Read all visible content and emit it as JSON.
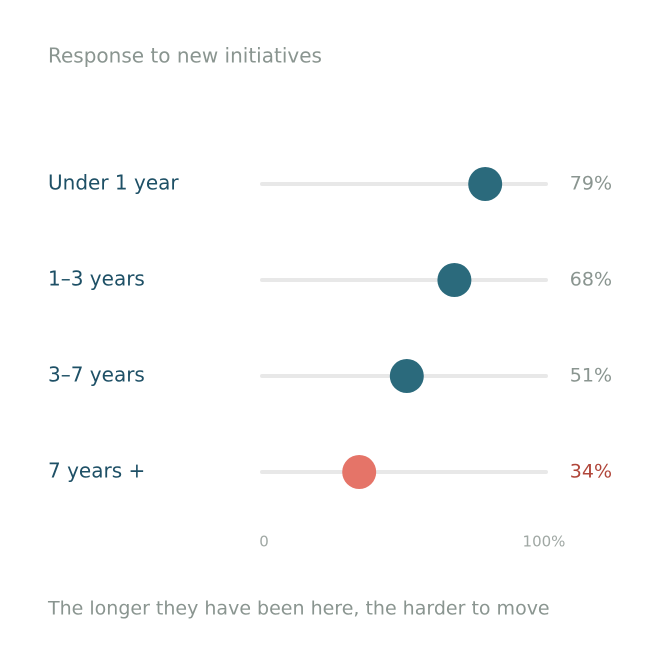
{
  "chart_data": {
    "type": "dot",
    "title": "Response to new initiatives",
    "categories": [
      "Under 1 year",
      "1–3 years",
      "3–7 years",
      "7 years +"
    ],
    "values": [
      79,
      68,
      51,
      34
    ],
    "value_labels": [
      "79%",
      "68%",
      "51%",
      "34%"
    ],
    "colors": [
      "#2b6a7c",
      "#2b6a7c",
      "#2b6a7c",
      "#e57468"
    ],
    "label_colors": [
      "#8a9590",
      "#8a9590",
      "#8a9590",
      "#b0463a"
    ],
    "xlim": [
      0,
      100
    ],
    "xticks": [
      0,
      {
        "value": 100,
        "label": "100%"
      }
    ],
    "caption": "The longer they have been here, the harder to move"
  }
}
